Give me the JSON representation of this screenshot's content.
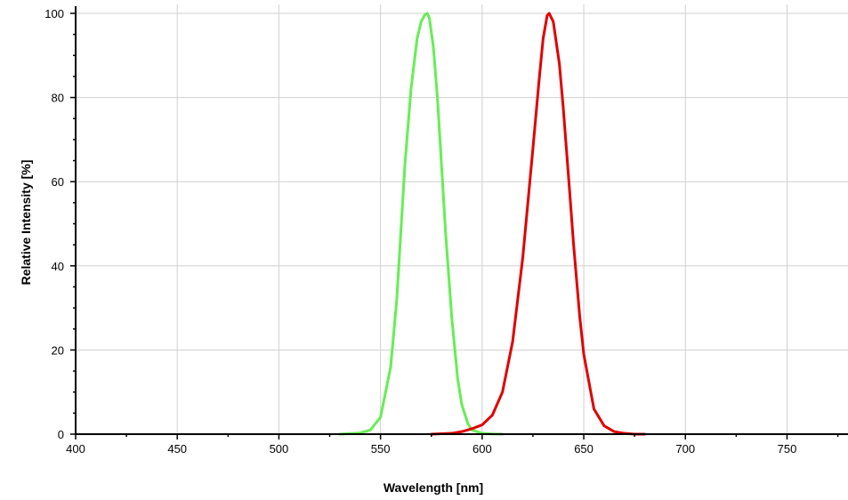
{
  "chart_data": {
    "type": "line",
    "title": "",
    "xlabel": "Wavelength [nm]",
    "ylabel": "Relative Intensity [%]",
    "xlim": [
      400,
      780
    ],
    "ylim": [
      0,
      100
    ],
    "xticks": [
      "400",
      "450",
      "500",
      "550",
      "600",
      "650",
      "700",
      "750"
    ],
    "yticks": [
      "0",
      "20",
      "40",
      "60",
      "80",
      "100"
    ],
    "grid": true,
    "legend": "none",
    "series": [
      {
        "color": "#66ee55",
        "x": [
          530,
          540,
          545,
          550,
          555,
          558,
          560,
          562,
          565,
          568,
          570,
          572,
          573,
          574,
          576,
          578,
          580,
          582,
          585,
          588,
          590,
          593,
          595,
          600,
          605,
          610
        ],
        "y": [
          0,
          0.3,
          1,
          4,
          16,
          32,
          48,
          64,
          82,
          94,
          98,
          99.8,
          100,
          99,
          92,
          80,
          64,
          48,
          28,
          13,
          7,
          2.5,
          1,
          0.2,
          0.05,
          0
        ]
      },
      {
        "color": "#e00000",
        "x": [
          575,
          585,
          590,
          595,
          600,
          605,
          610,
          615,
          620,
          625,
          628,
          630,
          632,
          633,
          635,
          638,
          640,
          643,
          645,
          648,
          650,
          655,
          660,
          665,
          670,
          675,
          680
        ],
        "y": [
          0,
          0.2,
          0.6,
          1.3,
          2.2,
          4.5,
          10,
          22,
          42,
          68,
          84,
          94,
          99.5,
          100,
          98,
          88,
          77,
          58,
          45,
          28,
          19,
          6,
          2,
          0.6,
          0.2,
          0,
          0
        ]
      }
    ]
  }
}
